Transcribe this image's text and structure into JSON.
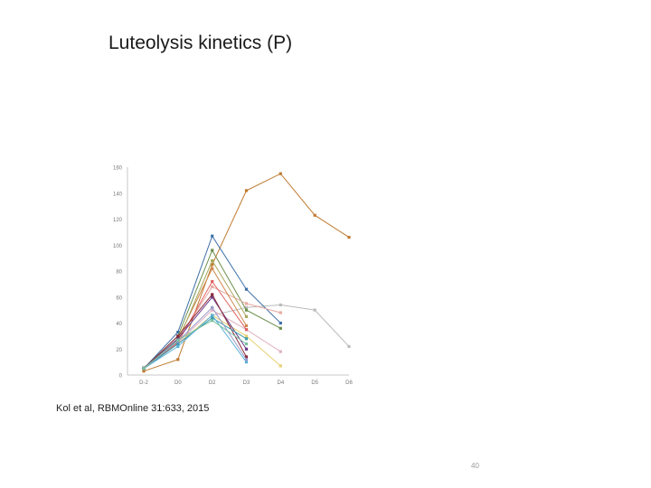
{
  "slide": {
    "title": "Luteolysis kinetics (P)",
    "citation": "Kol et al, RBMOnline 31:633, 2015",
    "page_number": "40"
  },
  "chart_data": {
    "type": "line",
    "categories": [
      "D-2",
      "D0",
      "D2",
      "D3",
      "D4",
      "D5",
      "D6"
    ],
    "yticks": [
      0,
      20,
      40,
      60,
      80,
      100,
      120,
      140,
      160
    ],
    "ylim": [
      0,
      160
    ],
    "grid": false,
    "legend": "none",
    "series": [
      {
        "color": "#c07a30",
        "values": [
          3,
          12,
          85,
          142,
          155,
          123,
          106
        ]
      },
      {
        "color": "#bbbbbb",
        "values": [
          6,
          24,
          46,
          52,
          54,
          50,
          22
        ]
      },
      {
        "color": "#3d6fa8",
        "values": [
          5,
          33,
          107,
          66,
          40,
          null,
          null
        ]
      },
      {
        "color": "#6a8f4a",
        "values": [
          5,
          30,
          96,
          50,
          36,
          null,
          null
        ]
      },
      {
        "color": "#e8a8a0",
        "values": [
          5,
          27,
          68,
          55,
          48,
          null,
          null
        ]
      },
      {
        "color": "#e0b0c0",
        "values": [
          5,
          25,
          50,
          35,
          18,
          null,
          null
        ]
      },
      {
        "color": "#e8d070",
        "values": [
          5,
          24,
          46,
          30,
          7,
          null,
          null
        ]
      },
      {
        "color": "#d08850",
        "values": [
          5,
          28,
          82,
          38,
          null,
          null,
          null
        ]
      },
      {
        "color": "#a8a85a",
        "values": [
          5,
          26,
          88,
          45,
          null,
          null,
          null
        ]
      },
      {
        "color": "#e06060",
        "values": [
          5,
          25,
          72,
          35,
          null,
          null,
          null
        ]
      },
      {
        "color": "#6a3a8a",
        "values": [
          5,
          28,
          60,
          20,
          null,
          null,
          null
        ]
      },
      {
        "color": "#8a2a3a",
        "values": [
          5,
          30,
          62,
          14,
          null,
          null,
          null
        ]
      },
      {
        "color": "#3a9aaa",
        "values": [
          5,
          24,
          44,
          28,
          null,
          null,
          null
        ]
      },
      {
        "color": "#5ab0d8",
        "values": [
          5,
          22,
          46,
          10,
          null,
          null,
          null
        ]
      },
      {
        "color": "#9a9ac8",
        "values": [
          5,
          26,
          52,
          12,
          null,
          null,
          null
        ]
      },
      {
        "color": "#78c0a0",
        "values": [
          5,
          27,
          42,
          24,
          null,
          null,
          null
        ]
      }
    ]
  }
}
